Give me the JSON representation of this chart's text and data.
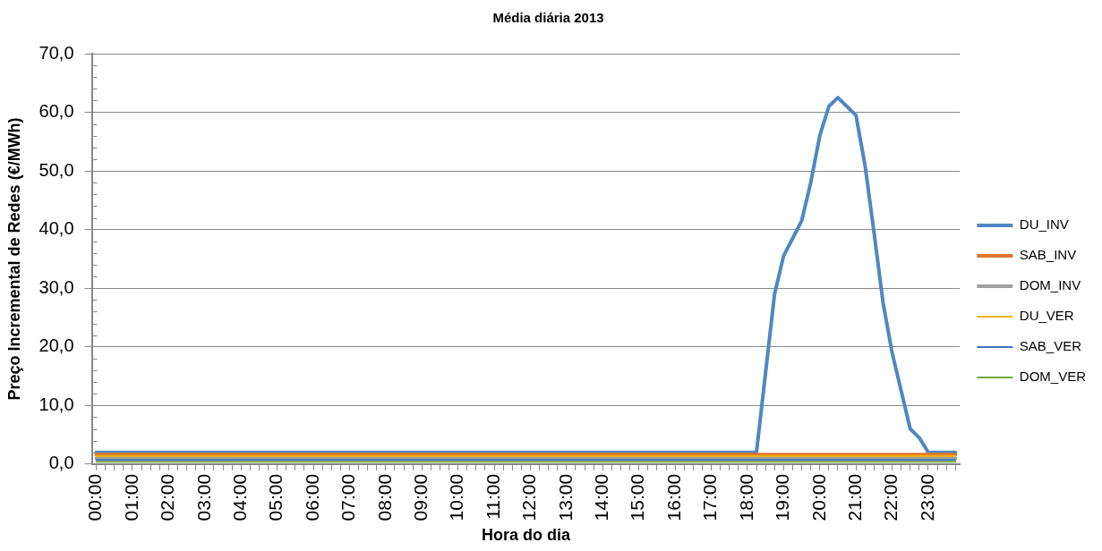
{
  "chart_data": {
    "type": "line",
    "title": "Média diária 2013",
    "xlabel": "Hora do dia",
    "ylabel": "Preço Incremental de Redes (€/MWh)",
    "categories": [
      "00:00",
      null,
      null,
      null,
      "01:00",
      null,
      null,
      null,
      "02:00",
      null,
      null,
      null,
      "03:00",
      null,
      null,
      null,
      "04:00",
      null,
      null,
      null,
      "05:00",
      null,
      null,
      null,
      "06:00",
      null,
      null,
      null,
      "07:00",
      null,
      null,
      null,
      "08:00",
      null,
      null,
      null,
      "09:00",
      null,
      null,
      null,
      "10:00",
      null,
      null,
      null,
      "11:00",
      null,
      null,
      null,
      "12:00",
      null,
      null,
      null,
      "13:00",
      null,
      null,
      null,
      "14:00",
      null,
      null,
      null,
      "15:00",
      null,
      null,
      null,
      "16:00",
      null,
      null,
      null,
      "17:00",
      null,
      null,
      null,
      "18:00",
      null,
      null,
      null,
      "19:00",
      null,
      null,
      null,
      "20:00",
      null,
      null,
      null,
      "21:00",
      null,
      null,
      null,
      "22:00",
      null,
      null,
      null,
      "23:00",
      null,
      null,
      null
    ],
    "series": [
      {
        "name": "DU_INV",
        "color": "#4f88bf",
        "values": [
          2.0,
          2.0,
          2.0,
          2.0,
          2.0,
          2.0,
          2.0,
          2.0,
          2.0,
          2.0,
          2.0,
          2.0,
          2.0,
          2.0,
          2.0,
          2.0,
          2.0,
          2.0,
          2.0,
          2.0,
          2.0,
          2.0,
          2.0,
          2.0,
          2.0,
          2.0,
          2.0,
          2.0,
          2.0,
          2.0,
          2.0,
          2.0,
          2.0,
          2.0,
          2.0,
          2.0,
          2.0,
          2.0,
          2.0,
          2.0,
          2.0,
          2.0,
          2.0,
          2.0,
          2.0,
          2.0,
          2.0,
          2.0,
          2.0,
          2.0,
          2.0,
          2.0,
          2.0,
          2.0,
          2.0,
          2.0,
          2.0,
          2.0,
          2.0,
          2.0,
          2.0,
          2.0,
          2.0,
          2.0,
          2.0,
          2.0,
          2.0,
          2.0,
          2.0,
          2.0,
          2.0,
          2.0,
          2.0,
          2.0,
          15.5,
          29.0,
          35.5,
          38.5,
          41.5,
          48.0,
          56.0,
          61.0,
          62.5,
          61.0,
          59.5,
          51.0,
          39.5,
          27.5,
          19.0,
          12.5,
          6.0,
          4.5,
          2.0,
          2.0,
          2.0,
          2.0
        ]
      },
      {
        "name": "SAB_INV",
        "color": "#e0752d",
        "values": [
          1.6,
          1.6,
          1.6,
          1.6,
          1.6,
          1.6,
          1.6,
          1.6,
          1.6,
          1.6,
          1.6,
          1.6,
          1.6,
          1.6,
          1.6,
          1.6,
          1.6,
          1.6,
          1.6,
          1.6,
          1.6,
          1.6,
          1.6,
          1.6,
          1.6,
          1.6,
          1.6,
          1.6,
          1.6,
          1.6,
          1.6,
          1.6,
          1.6,
          1.6,
          1.6,
          1.6,
          1.6,
          1.6,
          1.6,
          1.6,
          1.6,
          1.6,
          1.6,
          1.6,
          1.6,
          1.6,
          1.6,
          1.6,
          1.6,
          1.6,
          1.6,
          1.6,
          1.6,
          1.6,
          1.6,
          1.6,
          1.6,
          1.6,
          1.6,
          1.6,
          1.6,
          1.6,
          1.6,
          1.6,
          1.6,
          1.6,
          1.6,
          1.6,
          1.6,
          1.6,
          1.6,
          1.6,
          1.6,
          1.6,
          1.6,
          1.6,
          1.6,
          1.6,
          1.6,
          1.6,
          1.6,
          1.6,
          1.6,
          1.6,
          1.6,
          1.6,
          1.6,
          1.6,
          1.6,
          1.6,
          1.6,
          1.6,
          1.6,
          1.6,
          1.6,
          1.6
        ]
      },
      {
        "name": "DOM_INV",
        "color": "#a0a0a0",
        "values": [
          1.0,
          1.0,
          1.0,
          1.0,
          1.0,
          1.0,
          1.0,
          1.0,
          1.0,
          1.0,
          1.0,
          1.0,
          1.0,
          1.0,
          1.0,
          1.0,
          1.0,
          1.0,
          1.0,
          1.0,
          1.0,
          1.0,
          1.0,
          1.0,
          1.0,
          1.0,
          1.0,
          1.0,
          1.0,
          1.0,
          1.0,
          1.0,
          1.0,
          1.0,
          1.0,
          1.0,
          1.0,
          1.0,
          1.0,
          1.0,
          1.0,
          1.0,
          1.0,
          1.0,
          1.0,
          1.0,
          1.0,
          1.0,
          1.0,
          1.0,
          1.0,
          1.0,
          1.0,
          1.0,
          1.0,
          1.0,
          1.0,
          1.0,
          1.0,
          1.0,
          1.0,
          1.0,
          1.0,
          1.0,
          1.0,
          1.0,
          1.0,
          1.0,
          1.0,
          1.0,
          1.0,
          1.0,
          1.0,
          1.0,
          1.0,
          1.0,
          1.0,
          1.0,
          1.0,
          1.0,
          1.0,
          1.0,
          1.0,
          1.0,
          1.0,
          1.0,
          1.0,
          1.0,
          1.0,
          1.0,
          1.0,
          1.0,
          1.0,
          1.0,
          1.0,
          1.0
        ]
      },
      {
        "name": "DU_VER",
        "color": "#f0b400",
        "values": [
          1.4,
          1.4,
          1.4,
          1.4,
          1.4,
          1.4,
          1.4,
          1.4,
          1.4,
          1.4,
          1.4,
          1.4,
          1.4,
          1.4,
          1.4,
          1.4,
          1.4,
          1.4,
          1.4,
          1.4,
          1.4,
          1.4,
          1.4,
          1.4,
          1.4,
          1.4,
          1.4,
          1.4,
          1.4,
          1.4,
          1.4,
          1.4,
          1.4,
          1.4,
          1.4,
          1.4,
          1.4,
          1.4,
          1.4,
          1.4,
          1.4,
          1.4,
          1.4,
          1.4,
          1.4,
          1.4,
          1.4,
          1.4,
          1.4,
          1.4,
          1.4,
          1.4,
          1.4,
          1.4,
          1.4,
          1.4,
          1.4,
          1.4,
          1.4,
          1.4,
          1.4,
          1.4,
          1.4,
          1.4,
          1.4,
          1.4,
          1.4,
          1.4,
          1.4,
          1.4,
          1.4,
          1.4,
          1.4,
          1.4,
          1.4,
          1.4,
          1.4,
          1.4,
          1.4,
          1.4,
          1.4,
          1.4,
          1.4,
          1.4,
          1.4,
          1.4,
          1.4,
          1.4,
          1.4,
          1.4,
          1.4,
          1.4,
          1.4,
          1.4,
          1.4,
          1.4
        ]
      },
      {
        "name": "SAB_VER",
        "color": "#4472c4",
        "values": [
          0.7,
          0.7,
          0.7,
          0.7,
          0.7,
          0.7,
          0.7,
          0.7,
          0.7,
          0.7,
          0.7,
          0.7,
          0.7,
          0.7,
          0.7,
          0.7,
          0.7,
          0.7,
          0.7,
          0.7,
          0.7,
          0.7,
          0.7,
          0.7,
          0.7,
          0.7,
          0.7,
          0.7,
          0.7,
          0.7,
          0.7,
          0.7,
          0.7,
          0.7,
          0.7,
          0.7,
          0.7,
          0.7,
          0.7,
          0.7,
          0.7,
          0.7,
          0.7,
          0.7,
          0.7,
          0.7,
          0.7,
          0.7,
          0.7,
          0.7,
          0.7,
          0.7,
          0.7,
          0.7,
          0.7,
          0.7,
          0.7,
          0.7,
          0.7,
          0.7,
          0.7,
          0.7,
          0.7,
          0.7,
          0.7,
          0.7,
          0.7,
          0.7,
          0.7,
          0.7,
          0.7,
          0.7,
          0.7,
          0.7,
          0.7,
          0.7,
          0.7,
          0.7,
          0.7,
          0.7,
          0.7,
          0.7,
          0.7,
          0.7,
          0.7,
          0.7,
          0.7,
          0.7,
          0.7,
          0.7,
          0.7,
          0.7,
          0.7,
          0.7,
          0.7,
          0.7
        ]
      },
      {
        "name": "DOM_VER",
        "color": "#6fa945",
        "values": [
          0.4,
          0.4,
          0.4,
          0.4,
          0.4,
          0.4,
          0.4,
          0.4,
          0.4,
          0.4,
          0.4,
          0.4,
          0.4,
          0.4,
          0.4,
          0.4,
          0.4,
          0.4,
          0.4,
          0.4,
          0.4,
          0.4,
          0.4,
          0.4,
          0.4,
          0.4,
          0.4,
          0.4,
          0.4,
          0.4,
          0.4,
          0.4,
          0.4,
          0.4,
          0.4,
          0.4,
          0.4,
          0.4,
          0.4,
          0.4,
          0.4,
          0.4,
          0.4,
          0.4,
          0.4,
          0.4,
          0.4,
          0.4,
          0.4,
          0.4,
          0.4,
          0.4,
          0.4,
          0.4,
          0.4,
          0.4,
          0.4,
          0.4,
          0.4,
          0.4,
          0.4,
          0.4,
          0.4,
          0.4,
          0.4,
          0.4,
          0.4,
          0.4,
          0.4,
          0.4,
          0.4,
          0.4,
          0.4,
          0.4,
          0.4,
          0.4,
          0.4,
          0.4,
          0.4,
          0.4,
          0.4,
          0.4,
          0.4,
          0.4,
          0.4,
          0.4,
          0.4,
          0.4,
          0.4,
          0.4,
          0.4,
          0.4,
          0.4,
          0.4,
          0.4,
          0.4
        ]
      }
    ],
    "ylim": [
      0,
      70
    ],
    "yticks": [
      {
        "value": 0,
        "label": "0,0"
      },
      {
        "value": 2,
        "label": null
      },
      {
        "value": 4,
        "label": null
      },
      {
        "value": 6,
        "label": null
      },
      {
        "value": 8,
        "label": null
      },
      {
        "value": 10,
        "label": "10,0"
      },
      {
        "value": 12,
        "label": null
      },
      {
        "value": 14,
        "label": null
      },
      {
        "value": 16,
        "label": null
      },
      {
        "value": 18,
        "label": null
      },
      {
        "value": 20,
        "label": "20,0"
      },
      {
        "value": 22,
        "label": null
      },
      {
        "value": 24,
        "label": null
      },
      {
        "value": 26,
        "label": null
      },
      {
        "value": 28,
        "label": null
      },
      {
        "value": 30,
        "label": "30,0"
      },
      {
        "value": 32,
        "label": null
      },
      {
        "value": 34,
        "label": null
      },
      {
        "value": 36,
        "label": null
      },
      {
        "value": 38,
        "label": null
      },
      {
        "value": 40,
        "label": "40,0"
      },
      {
        "value": 42,
        "label": null
      },
      {
        "value": 44,
        "label": null
      },
      {
        "value": 46,
        "label": null
      },
      {
        "value": 48,
        "label": null
      },
      {
        "value": 50,
        "label": "50,0"
      },
      {
        "value": 52,
        "label": null
      },
      {
        "value": 54,
        "label": null
      },
      {
        "value": 56,
        "label": null
      },
      {
        "value": 58,
        "label": null
      },
      {
        "value": 60,
        "label": "60,0"
      },
      {
        "value": 62,
        "label": null
      },
      {
        "value": 64,
        "label": null
      },
      {
        "value": 66,
        "label": null
      },
      {
        "value": 68,
        "label": null
      },
      {
        "value": 70,
        "label": "70,0"
      }
    ],
    "grid": "y",
    "legend": "right"
  }
}
